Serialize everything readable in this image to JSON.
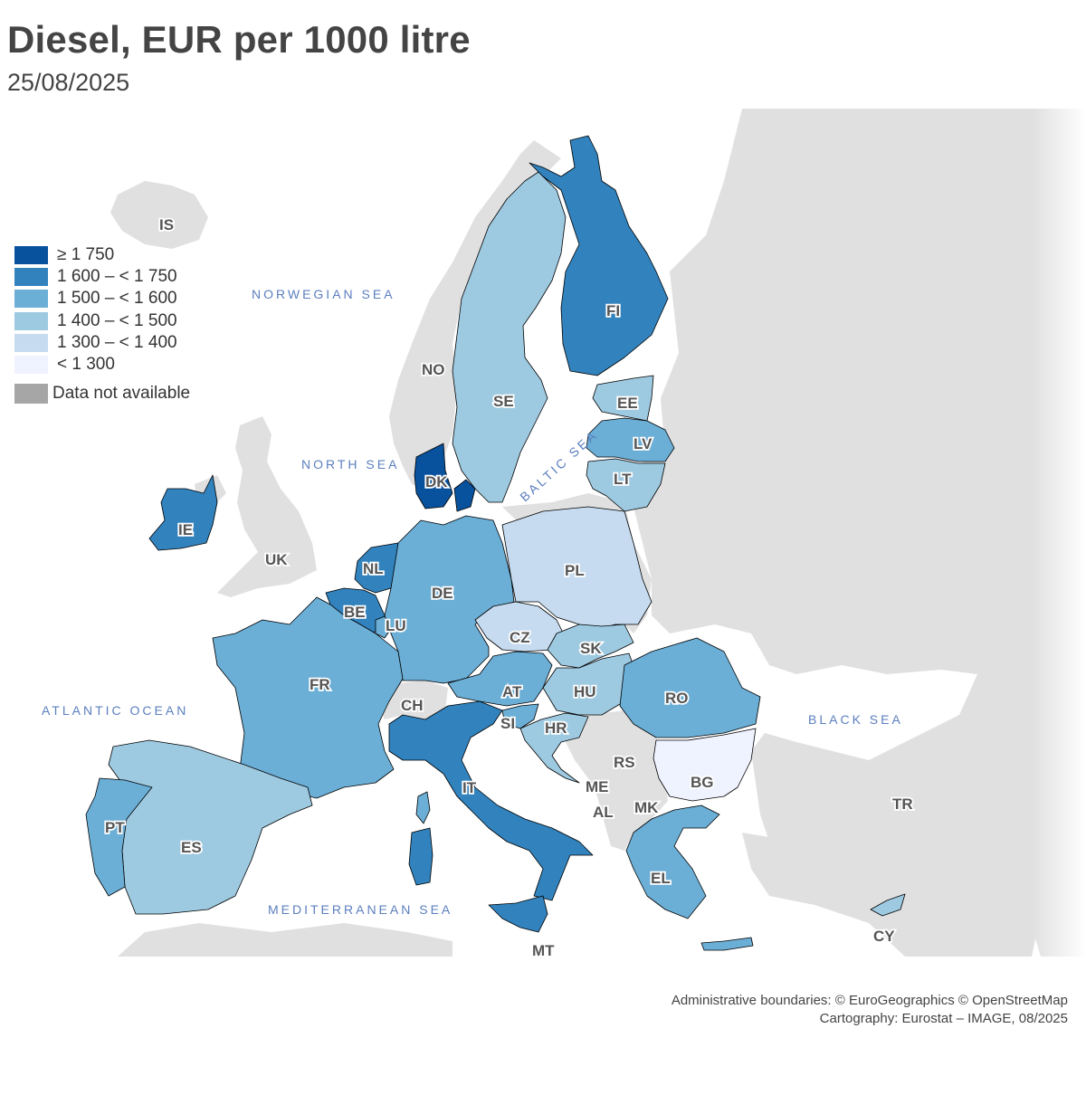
{
  "title": "Diesel, EUR per 1000 litre",
  "subtitle": "25/08/2025",
  "legend": {
    "classes": [
      {
        "label": "≥ 1 750",
        "color": "#08519c"
      },
      {
        "label": "1 600 – < 1 750",
        "color": "#3182bd"
      },
      {
        "label": "1 500 – < 1 600",
        "color": "#6baed6"
      },
      {
        "label": "1 400 – < 1 500",
        "color": "#9ecae1"
      },
      {
        "label": "1 300 – < 1 400",
        "color": "#c6dbef"
      },
      {
        "label": "< 1 300",
        "color": "#eff3ff"
      }
    ],
    "not_available": {
      "label": "Data not available",
      "color": "#a6a6a6"
    }
  },
  "seas": {
    "norwegian": "NORWEGIAN SEA",
    "north": "NORTH SEA",
    "atlantic": "ATLANTIC OCEAN",
    "baltic": "BALTIC SEA",
    "black": "BLACK SEA",
    "mediterranean": "MEDITERRANEAN SEA"
  },
  "colors": {
    "non_eu_land": "#e0e0e0",
    "sea": "#ffffff",
    "border": "#000000"
  },
  "countries": {
    "IS": "IS",
    "NO": "NO",
    "SE": "SE",
    "FI": "FI",
    "EE": "EE",
    "LV": "LV",
    "LT": "LT",
    "DK": "DK",
    "IE": "IE",
    "UK": "UK",
    "NL": "NL",
    "BE": "BE",
    "LU": "LU",
    "DE": "DE",
    "PL": "PL",
    "CZ": "CZ",
    "SK": "SK",
    "AT": "AT",
    "CH": "CH",
    "FR": "FR",
    "HU": "HU",
    "RO": "RO",
    "SI": "SI",
    "HR": "HR",
    "RS": "RS",
    "BG": "BG",
    "ME": "ME",
    "AL": "AL",
    "MK": "MK",
    "IT": "IT",
    "PT": "PT",
    "ES": "ES",
    "EL": "EL",
    "TR": "TR",
    "CY": "CY",
    "MT": "MT"
  },
  "credits": {
    "line1": "Administrative boundaries: © EuroGeographics © OpenStreetMap",
    "line2": "Cartography: Eurostat – IMAGE, 08/2025"
  }
}
